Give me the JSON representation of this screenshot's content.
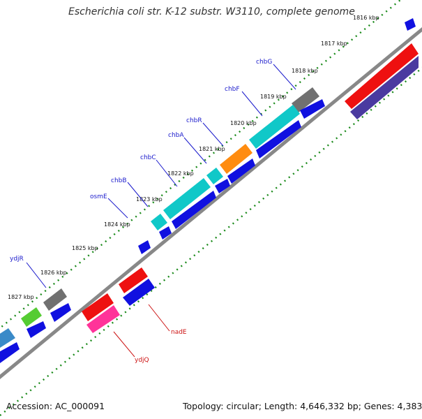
{
  "title": "Escherichia coli str. K-12 substr. W3110, complete genome",
  "footer": {
    "accession": "Accession: AC_000091",
    "topology": "Topology: circular; Length: 4,646,332 bp; Genes: 4,383"
  },
  "colors": {
    "backbone": "#888888",
    "tick": "#1a8a1a",
    "forward_label": "#1a1acc",
    "reverse_label": "#cc1111",
    "cds_blue": "#1010e0",
    "cyan": "#10c8c8",
    "orange": "#ff8c10",
    "gray": "#707070",
    "red": "#ee1010",
    "pink": "#ff3399",
    "purple": "#4a3aa0",
    "green": "#55cc33",
    "steel": "#3a8ac8"
  },
  "kbp_ticks": [
    "1816 kbp",
    "1817 kbp",
    "1818 kbp",
    "1819 kbp",
    "1820 kbp",
    "1821 kbp",
    "1822 kbp",
    "1823 kbp",
    "1824 kbp",
    "1825 kbp",
    "1826 kbp",
    "1827 kbp"
  ],
  "forward_gene_labels": [
    "chbG",
    "chbF",
    "chbR",
    "chbA",
    "chbC",
    "chbB",
    "osmE",
    "ydjR"
  ],
  "reverse_gene_labels": [
    "nadE",
    "ydjQ"
  ]
}
